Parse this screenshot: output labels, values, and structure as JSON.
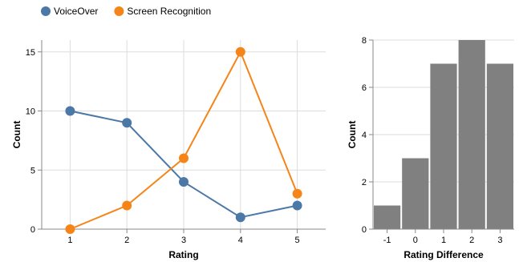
{
  "chart_data": [
    {
      "type": "line",
      "xlabel": "Rating",
      "ylabel": "Count",
      "x": [
        1,
        2,
        3,
        4,
        5
      ],
      "xlim": [
        0.5,
        5.5
      ],
      "ylim": [
        0,
        16
      ],
      "yticks": [
        0,
        5,
        10,
        15
      ],
      "grid": true,
      "legend_placement": "top-left",
      "series": [
        {
          "name": "VoiceOver",
          "color": "#4c78a8",
          "values": [
            10,
            9,
            4,
            1,
            2
          ]
        },
        {
          "name": "Screen Recognition",
          "color": "#f58518",
          "values": [
            0,
            2,
            6,
            15,
            3
          ]
        }
      ]
    },
    {
      "type": "bar",
      "xlabel": "Rating Difference",
      "ylabel": "Count",
      "categories": [
        "-1",
        "0",
        "1",
        "2",
        "3"
      ],
      "values": [
        1,
        3,
        7,
        8,
        7
      ],
      "ylim": [
        0,
        8
      ],
      "yticks": [
        0,
        2,
        4,
        6,
        8
      ],
      "grid": true,
      "bar_color": "#808080"
    }
  ]
}
